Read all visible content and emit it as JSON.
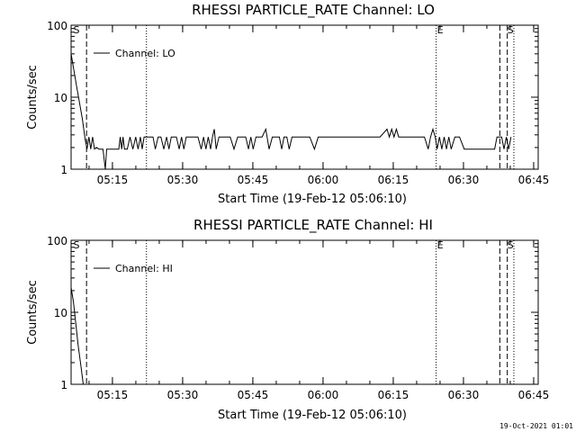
{
  "chart_data": [
    {
      "type": "line",
      "title": "RHESSI PARTICLE_RATE Channel: LO",
      "xlabel": "Start Time (19-Feb-12 05:06:10)",
      "ylabel": "Counts/sec",
      "y_scale": "log",
      "ylim": [
        1,
        100
      ],
      "xlim_minutes": [
        0,
        99.8
      ],
      "y_ticks": [
        "1",
        "10",
        "100"
      ],
      "x_ticks": [
        "05:15",
        "05:30",
        "05:45",
        "06:00",
        "06:15",
        "06:30",
        "06:45"
      ],
      "legend": "Channel: LO",
      "markers": [
        {
          "label": "S",
          "t": 0.3
        },
        {
          "label": "E",
          "t": 78.0
        },
        {
          "label": "S",
          "t": 93.0
        }
      ],
      "vlines_dashed": [
        3.3,
        91.6,
        93.2
      ],
      "vlines_dotted": [
        16.1,
        78.0,
        94.6
      ],
      "series": [
        {
          "x": [
            0.0,
            1.2,
            2.4,
            3.0,
            3.4,
            3.8,
            4.2,
            4.6,
            5.0,
            5.4,
            6.0,
            6.8,
            7.3,
            7.6,
            7.9,
            8.3,
            9.0,
            10.2,
            10.5,
            10.8,
            11.1,
            11.4,
            12.0,
            12.6,
            13.2,
            13.8,
            14.3,
            14.8,
            15.2,
            15.6,
            16.4,
            17.0,
            17.5,
            18.0,
            18.6,
            19.2,
            19.8,
            20.4,
            20.9,
            21.4,
            22.5,
            23.1,
            23.6,
            24.1,
            24.6,
            25.3,
            26.4,
            27.1,
            27.8,
            28.3,
            28.8,
            29.3,
            29.8,
            30.2,
            30.6,
            31.0,
            31.6,
            32.4,
            33.2,
            34.0,
            34.8,
            35.6,
            36.4,
            37.3,
            37.9,
            38.4,
            38.9,
            39.5,
            40.1,
            40.8,
            41.6,
            42.3,
            43.0,
            43.6,
            44.5,
            45.0,
            45.5,
            46.1,
            46.6,
            47.2,
            48.0,
            49.5,
            51.0,
            52.0,
            52.8,
            53.4,
            54.0,
            55.0,
            56.0,
            57.0,
            58.0,
            59.0,
            60.0,
            62.0,
            64.0,
            66.0,
            67.5,
            68.0,
            68.5,
            69.0,
            69.5,
            70.0,
            71.0,
            72.5,
            74.0,
            75.5,
            76.3,
            76.8,
            77.3,
            77.8,
            78.2,
            78.7,
            79.2,
            79.7,
            80.2,
            80.7,
            81.2,
            82.0,
            83.0,
            84.0,
            85.0,
            86.5,
            88.0,
            89.5,
            90.5,
            91.0,
            91.5,
            92.0,
            92.5,
            93.0,
            93.5,
            94.0
          ],
          "y": [
            40.0,
            14.0,
            5.0,
            2.6,
            1.9,
            2.8,
            1.9,
            2.8,
            1.9,
            2.0,
            1.9,
            1.9,
            1.0,
            1.9,
            1.9,
            1.9,
            1.9,
            1.9,
            2.8,
            1.9,
            2.8,
            1.9,
            1.9,
            2.8,
            1.9,
            2.8,
            1.9,
            2.8,
            1.9,
            2.8,
            2.8,
            2.8,
            2.8,
            1.9,
            2.8,
            2.8,
            1.9,
            2.8,
            1.9,
            2.8,
            2.8,
            1.9,
            2.8,
            1.9,
            2.8,
            2.8,
            2.8,
            2.8,
            1.9,
            2.8,
            1.9,
            2.8,
            1.9,
            2.8,
            3.6,
            1.9,
            2.8,
            2.8,
            2.8,
            2.8,
            1.9,
            2.8,
            2.8,
            2.8,
            1.9,
            2.8,
            1.9,
            2.8,
            2.8,
            2.8,
            3.6,
            1.9,
            2.8,
            2.8,
            2.8,
            1.9,
            2.8,
            2.8,
            1.9,
            2.8,
            2.8,
            2.8,
            2.8,
            1.9,
            2.8,
            2.8,
            2.8,
            2.8,
            2.8,
            2.8,
            2.8,
            2.8,
            2.8,
            2.8,
            2.8,
            2.8,
            3.6,
            2.8,
            3.6,
            2.8,
            3.6,
            2.8,
            2.8,
            2.8,
            2.8,
            2.8,
            1.9,
            2.8,
            3.6,
            2.8,
            1.9,
            2.8,
            1.9,
            2.8,
            1.9,
            2.8,
            1.9,
            2.8,
            2.8,
            1.9,
            1.9,
            1.9,
            1.9,
            1.9,
            1.9,
            2.8,
            2.8,
            2.8,
            1.9,
            2.8,
            1.9,
            2.8
          ]
        }
      ]
    },
    {
      "type": "line",
      "title": "RHESSI PARTICLE_RATE Channel: HI",
      "xlabel": "Start Time (19-Feb-12 05:06:10)",
      "ylabel": "Counts/sec",
      "y_scale": "log",
      "ylim": [
        1,
        100
      ],
      "xlim_minutes": [
        0,
        99.8
      ],
      "y_ticks": [
        "1",
        "10",
        "100"
      ],
      "x_ticks": [
        "05:15",
        "05:30",
        "05:45",
        "06:00",
        "06:15",
        "06:30",
        "06:45"
      ],
      "legend": "Channel: HI",
      "markers": [
        {
          "label": "S",
          "t": 0.3
        },
        {
          "label": "E",
          "t": 78.0
        },
        {
          "label": "S",
          "t": 93.0
        }
      ],
      "vlines_dashed": [
        3.3,
        91.6,
        93.2
      ],
      "vlines_dotted": [
        16.1,
        78.0,
        94.6
      ],
      "series": [
        {
          "x": [
            0.0,
            0.5,
            1.0,
            1.5,
            2.1,
            2.6
          ],
          "y": [
            22.0,
            14.0,
            7.0,
            3.5,
            1.8,
            1.0
          ]
        }
      ]
    }
  ],
  "footer": {
    "timestamp": "19-Oct-2021 01:01"
  }
}
